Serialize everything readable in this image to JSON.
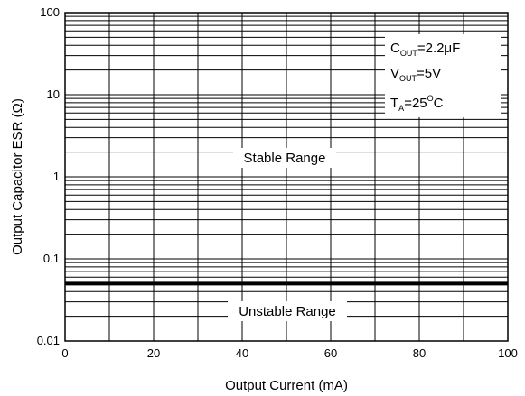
{
  "chart_data": {
    "type": "line",
    "title": "",
    "xlabel": "Output Current (mA)",
    "ylabel": "Output Capacitor ESR (Ω)",
    "xlim": [
      0,
      100
    ],
    "ylim": [
      0.01,
      100
    ],
    "y_scale": "log",
    "grid": true,
    "x_ticks": [
      "0",
      "20",
      "40",
      "60",
      "80",
      "100"
    ],
    "y_ticks": [
      "0.01",
      "0.1",
      "1",
      "10",
      "100"
    ],
    "series": [
      {
        "x": [
          0,
          100
        ],
        "y": [
          0.05,
          0.05
        ]
      }
    ],
    "annotations": {
      "conditions": [
        {
          "main": "C",
          "sub": "OUT",
          "rest": "=2.2μF"
        },
        {
          "main": "V",
          "sub": "OUT",
          "rest": "=5V"
        },
        {
          "main": "T",
          "sub": "A",
          "rest": "=25",
          "sup": "O",
          "tail": "C"
        }
      ],
      "stable": "Stable Range",
      "unstable": "Unstable Range"
    }
  }
}
